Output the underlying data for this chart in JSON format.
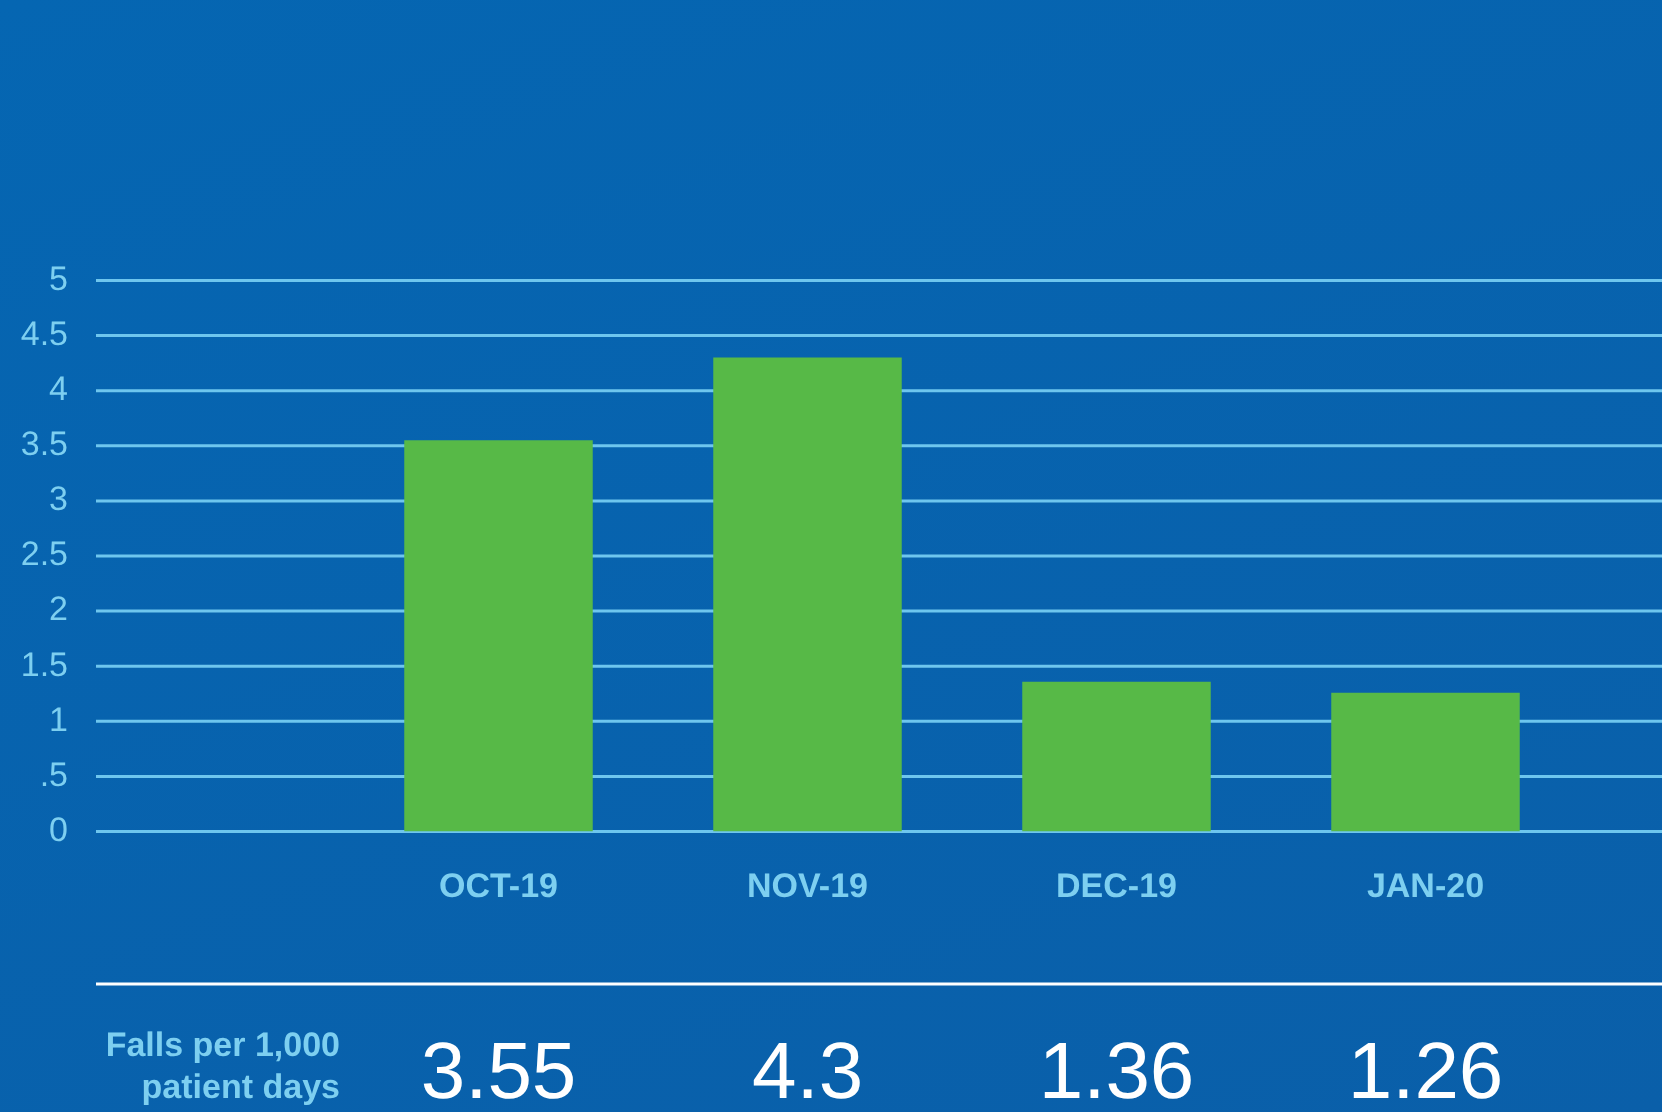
{
  "chart_data": {
    "type": "bar",
    "categories": [
      "OCT-19",
      "NOV-19",
      "DEC-19",
      "JAN-20"
    ],
    "values": [
      3.55,
      4.3,
      1.36,
      1.26
    ],
    "color": "#57b947",
    "ylim": [
      0,
      5
    ],
    "yticks": [
      0,
      {
        "value": 0.5,
        "label": ".5"
      },
      1,
      1.5,
      2,
      2.5,
      3,
      3.5,
      4,
      4.5,
      5
    ],
    "grid": true,
    "data_labels": true,
    "legend": false,
    "annotations": [
      "Falls per 1,000 patient days"
    ]
  }
}
